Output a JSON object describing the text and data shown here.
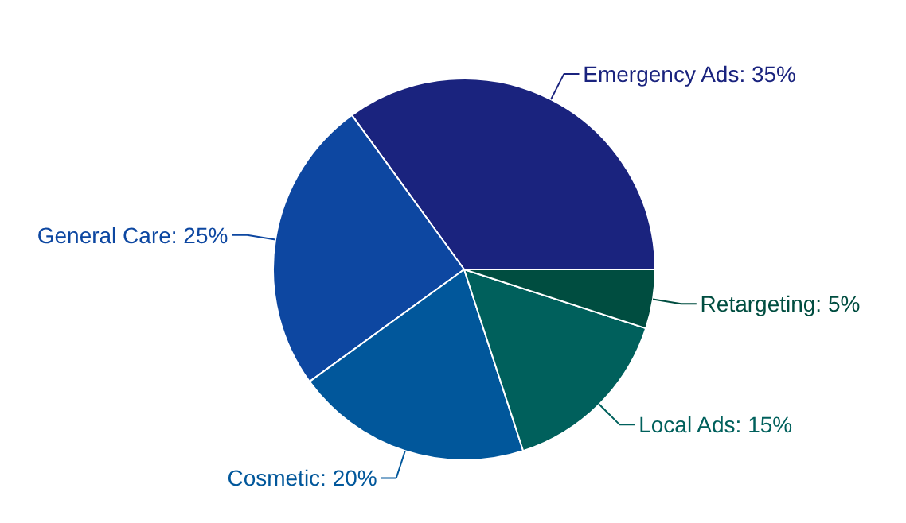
{
  "chart_data": {
    "type": "pie",
    "categories": [
      "Emergency Ads",
      "General Care",
      "Cosmetic",
      "Local Ads",
      "Retargeting"
    ],
    "values": [
      35,
      25,
      20,
      15,
      5
    ],
    "value_labels": [
      "35%",
      "25%",
      "20%",
      "15%",
      "5%"
    ],
    "colors": [
      "#1a237e",
      "#0d47a1",
      "#01579b",
      "#00605c",
      "#004d40"
    ]
  }
}
